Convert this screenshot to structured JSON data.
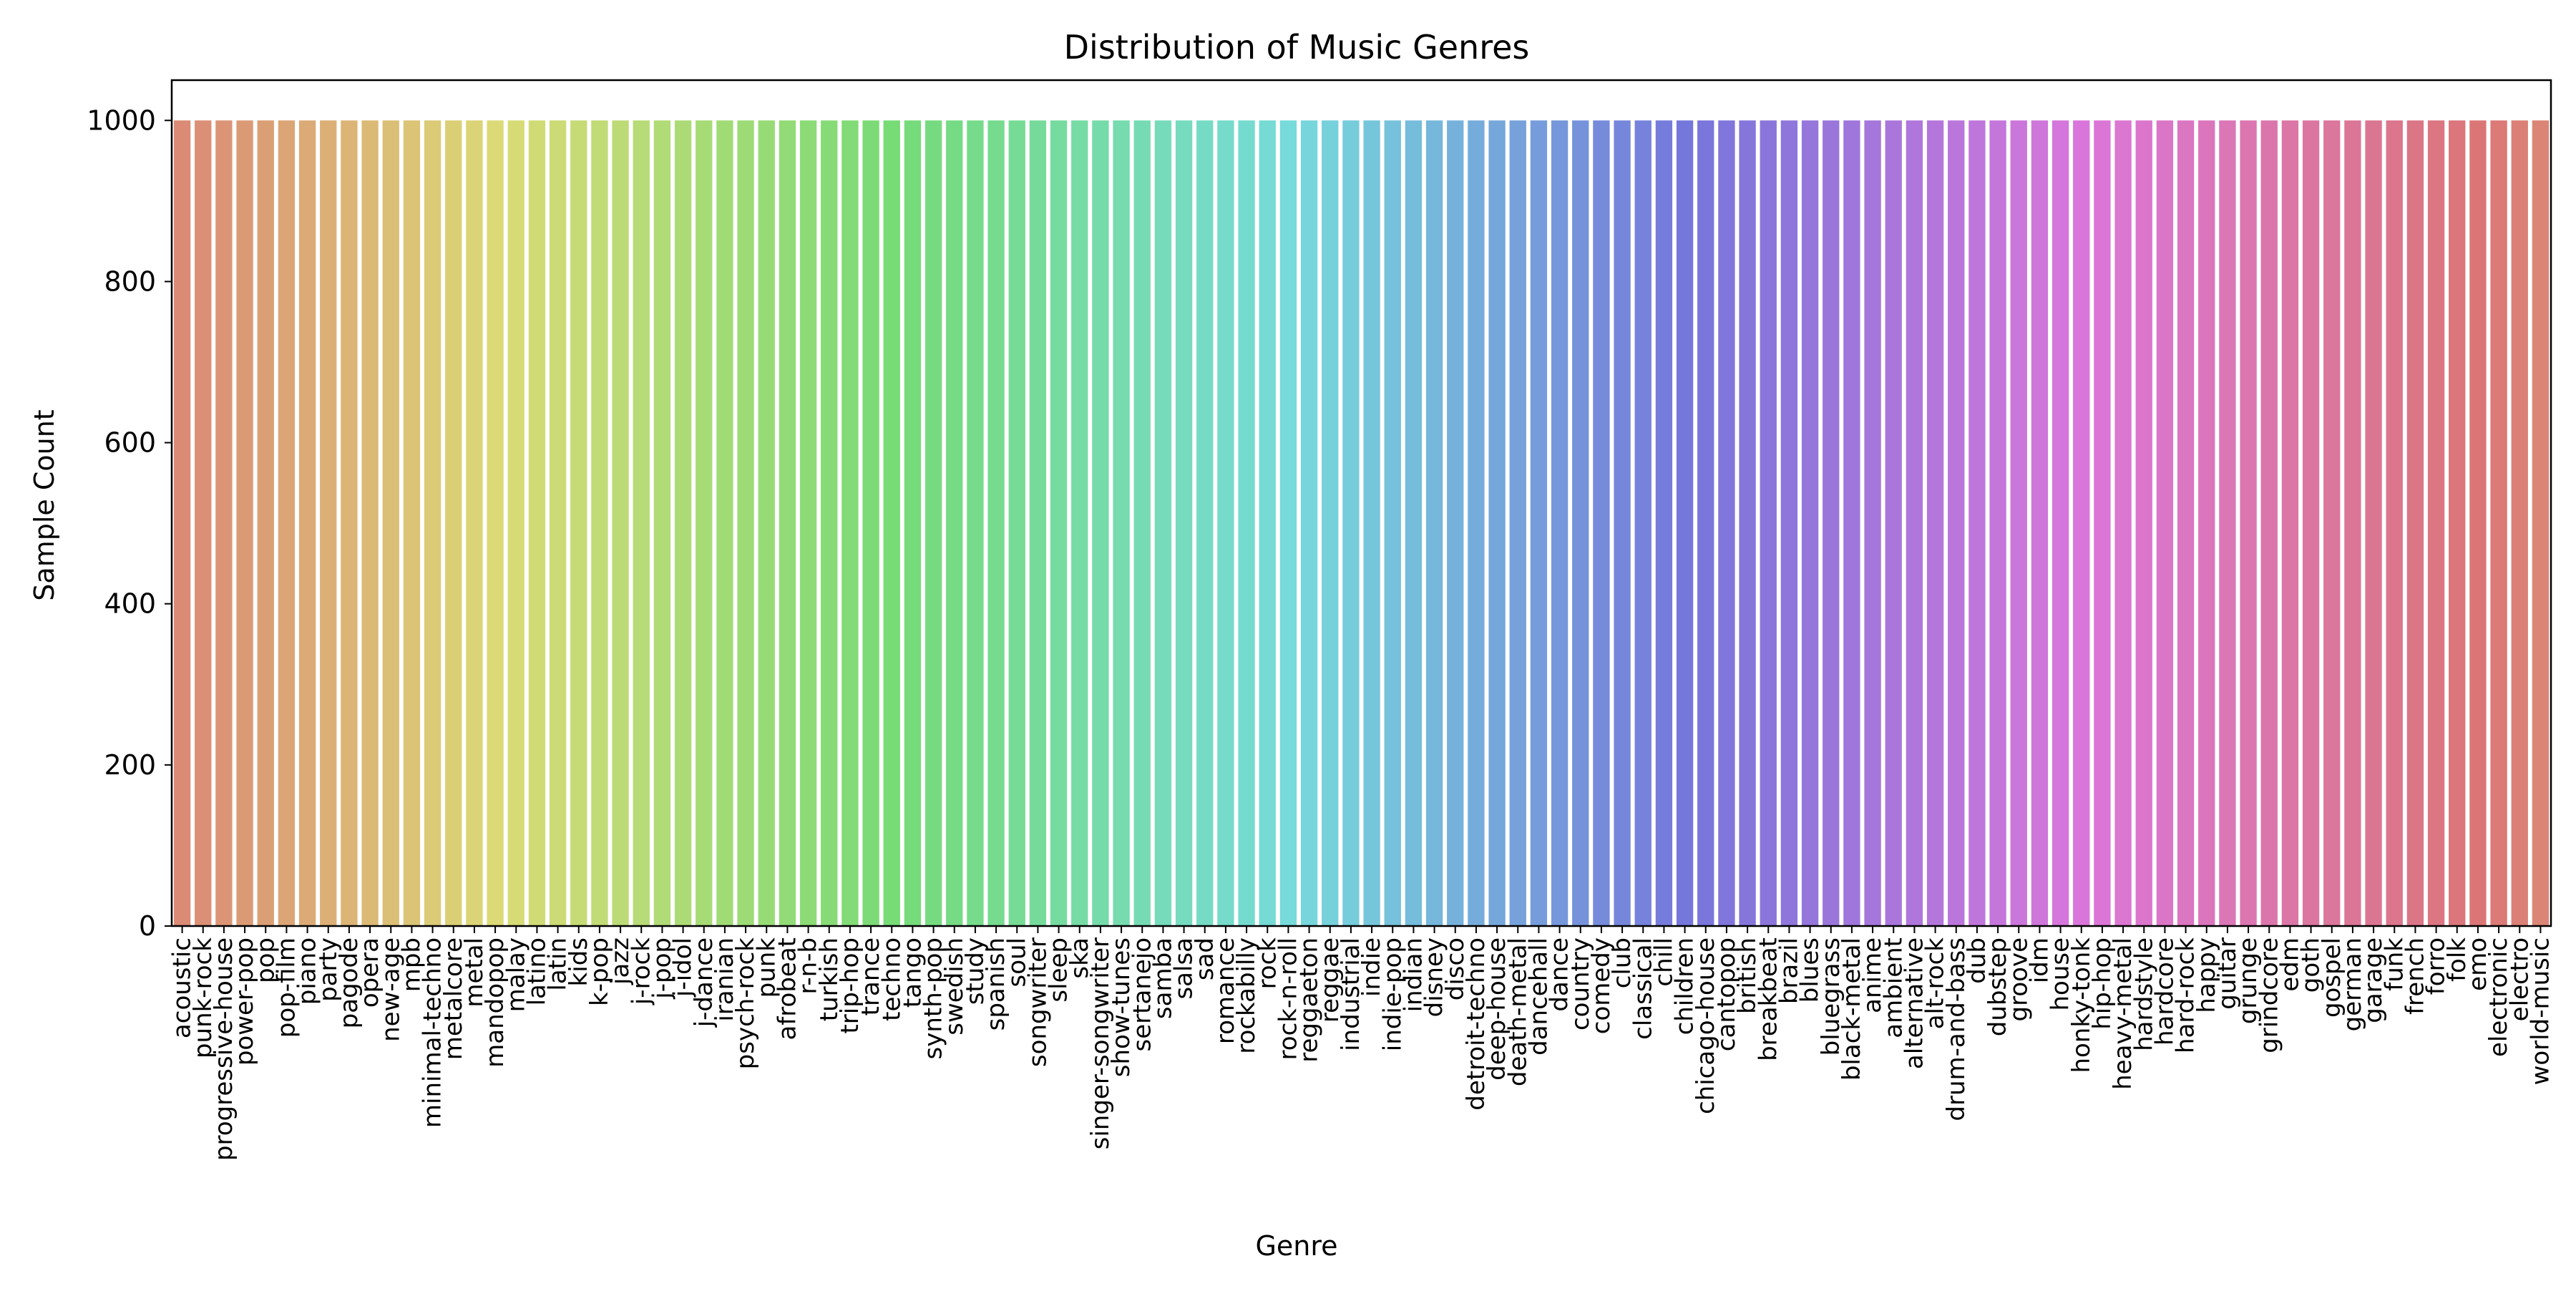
{
  "chart_data": {
    "type": "bar",
    "title": "Distribution of Music Genres",
    "xlabel": "Genre",
    "ylabel": "Sample Count",
    "ylim": [
      0,
      1050
    ],
    "yticks": [
      0,
      200,
      400,
      600,
      800,
      1000
    ],
    "grid": false,
    "categories": [
      "acoustic",
      "punk-rock",
      "progressive-house",
      "power-pop",
      "pop",
      "pop-film",
      "piano",
      "party",
      "pagode",
      "opera",
      "new-age",
      "mpb",
      "minimal-techno",
      "metalcore",
      "metal",
      "mandopop",
      "malay",
      "latino",
      "latin",
      "kids",
      "k-pop",
      "jazz",
      "j-rock",
      "j-pop",
      "j-idol",
      "j-dance",
      "iranian",
      "psych-rock",
      "punk",
      "afrobeat",
      "r-n-b",
      "turkish",
      "trip-hop",
      "trance",
      "techno",
      "tango",
      "synth-pop",
      "swedish",
      "study",
      "spanish",
      "soul",
      "songwriter",
      "sleep",
      "ska",
      "singer-songwriter",
      "show-tunes",
      "sertanejo",
      "samba",
      "salsa",
      "sad",
      "romance",
      "rockabilly",
      "rock",
      "rock-n-roll",
      "reggaeton",
      "reggae",
      "industrial",
      "indie",
      "indie-pop",
      "indian",
      "disney",
      "disco",
      "detroit-techno",
      "deep-house",
      "death-metal",
      "dancehall",
      "dance",
      "country",
      "comedy",
      "club",
      "classical",
      "chill",
      "children",
      "chicago-house",
      "cantopop",
      "british",
      "breakbeat",
      "brazil",
      "blues",
      "bluegrass",
      "black-metal",
      "anime",
      "ambient",
      "alternative",
      "alt-rock",
      "drum-and-bass",
      "dub",
      "dubstep",
      "groove",
      "idm",
      "house",
      "honky-tonk",
      "hip-hop",
      "heavy-metal",
      "hardstyle",
      "hardcore",
      "hard-rock",
      "happy",
      "guitar",
      "grunge",
      "grindcore",
      "edm",
      "goth",
      "gospel",
      "german",
      "garage",
      "funk",
      "french",
      "forro",
      "folk",
      "emo",
      "electronic",
      "electro",
      "world-music"
    ],
    "values": [
      1000,
      1000,
      1000,
      1000,
      1000,
      1000,
      1000,
      1000,
      1000,
      1000,
      1000,
      1000,
      1000,
      1000,
      1000,
      1000,
      1000,
      1000,
      1000,
      1000,
      1000,
      1000,
      1000,
      1000,
      1000,
      1000,
      1000,
      1000,
      1000,
      1000,
      1000,
      1000,
      1000,
      1000,
      1000,
      1000,
      1000,
      1000,
      1000,
      1000,
      1000,
      1000,
      1000,
      1000,
      1000,
      1000,
      1000,
      1000,
      1000,
      1000,
      1000,
      1000,
      1000,
      1000,
      1000,
      1000,
      1000,
      1000,
      1000,
      1000,
      1000,
      1000,
      1000,
      1000,
      1000,
      1000,
      1000,
      1000,
      1000,
      1000,
      1000,
      1000,
      1000,
      1000,
      1000,
      1000,
      1000,
      1000,
      1000,
      1000,
      1000,
      1000,
      1000,
      1000,
      1000,
      1000,
      1000,
      1000,
      1000,
      1000,
      1000,
      1000,
      1000,
      1000,
      1000,
      1000,
      1000,
      1000,
      1000,
      1000,
      1000,
      1000,
      1000,
      1000,
      1000,
      1000,
      1000,
      1000,
      1000,
      1000,
      1000,
      1000,
      1000,
      1000
    ],
    "palette": "husl"
  }
}
